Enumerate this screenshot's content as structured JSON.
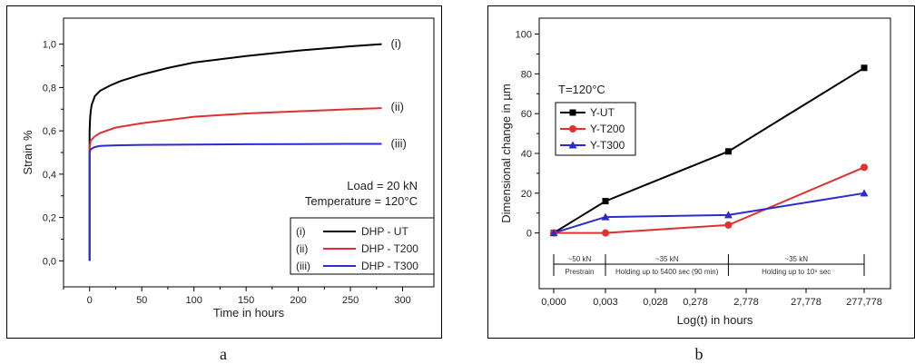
{
  "captions": {
    "a": "a",
    "b": "b"
  },
  "chart_data": [
    {
      "type": "line",
      "xlabel": "Time in hours",
      "ylabel": "Strain %",
      "xlim": [
        -25,
        330
      ],
      "ylim": [
        -0.12,
        1.12
      ],
      "xticks": [
        0,
        50,
        100,
        150,
        200,
        250,
        300
      ],
      "yticks": [
        0.0,
        0.2,
        0.4,
        0.6,
        0.8,
        1.0
      ],
      "xtick_labels": [
        "0",
        "50",
        "100",
        "150",
        "200",
        "250",
        "300"
      ],
      "ytick_labels": [
        "0,0",
        "0,2",
        "0,4",
        "0,6",
        "0,8",
        "1,0"
      ],
      "annotations": [
        "Load = 20 kN",
        "Temperature = 120°C"
      ],
      "series": [
        {
          "name": "DHP - UT",
          "tag": "(i)",
          "color": "#000000",
          "x": [
            0,
            0,
            0.5,
            1,
            2,
            5,
            10,
            20,
            30,
            50,
            75,
            100,
            150,
            200,
            250,
            280
          ],
          "y": [
            0.0,
            0.6,
            0.66,
            0.69,
            0.72,
            0.76,
            0.785,
            0.81,
            0.83,
            0.86,
            0.89,
            0.915,
            0.945,
            0.97,
            0.99,
            1.0
          ]
        },
        {
          "name": "DHP - T200",
          "tag": "(ii)",
          "color": "#e03030",
          "x": [
            0,
            0,
            1,
            5,
            10,
            25,
            50,
            75,
            100,
            150,
            200,
            250,
            280
          ],
          "y": [
            0.0,
            0.52,
            0.555,
            0.575,
            0.59,
            0.615,
            0.635,
            0.65,
            0.665,
            0.68,
            0.69,
            0.7,
            0.705
          ],
          "label_at": 0.71
        },
        {
          "name": "DHP - T300",
          "tag": "(iii)",
          "color": "#2b2bd0",
          "x": [
            0,
            0,
            1,
            5,
            10,
            25,
            50,
            100,
            150,
            200,
            250,
            280
          ],
          "y": [
            0.0,
            0.5,
            0.515,
            0.525,
            0.53,
            0.533,
            0.535,
            0.537,
            0.538,
            0.539,
            0.54,
            0.54
          ]
        }
      ]
    },
    {
      "type": "line",
      "xlabel": "Log(t) in hours",
      "ylabel": "Dimensional change in µm",
      "categories": [
        "0,000",
        "0,003",
        "0,028",
        "0,278",
        "2,778",
        "27,778",
        "277,778"
      ],
      "ylim": [
        -28,
        108
      ],
      "yticks": [
        0,
        20,
        40,
        60,
        80,
        100
      ],
      "annotation": "T=120°C",
      "phases": [
        {
          "load": "~50 kN",
          "label": "Prestrain",
          "from": 0,
          "to": 1
        },
        {
          "load": "~35 kN",
          "label": "Holding up to 5400 sec (90 min)",
          "from": 1,
          "to": 3.65
        },
        {
          "load": "~35 kN",
          "label": "Holding up to 10⁶ sec",
          "from": 3.65,
          "to": 6
        }
      ],
      "series": [
        {
          "name": "Y-UT",
          "color": "#000000",
          "marker": "square",
          "x": [
            0,
            1,
            3.65,
            6
          ],
          "y": [
            0,
            16,
            41,
            83
          ]
        },
        {
          "name": "Y-T200",
          "color": "#e03030",
          "marker": "circle",
          "x": [
            0,
            1,
            3.65,
            6
          ],
          "y": [
            0,
            0,
            4,
            33
          ]
        },
        {
          "name": "Y-T300",
          "color": "#2b2bd0",
          "marker": "triangle",
          "x": [
            0,
            1,
            3.65,
            6
          ],
          "y": [
            0,
            8,
            9,
            20
          ]
        }
      ]
    }
  ]
}
